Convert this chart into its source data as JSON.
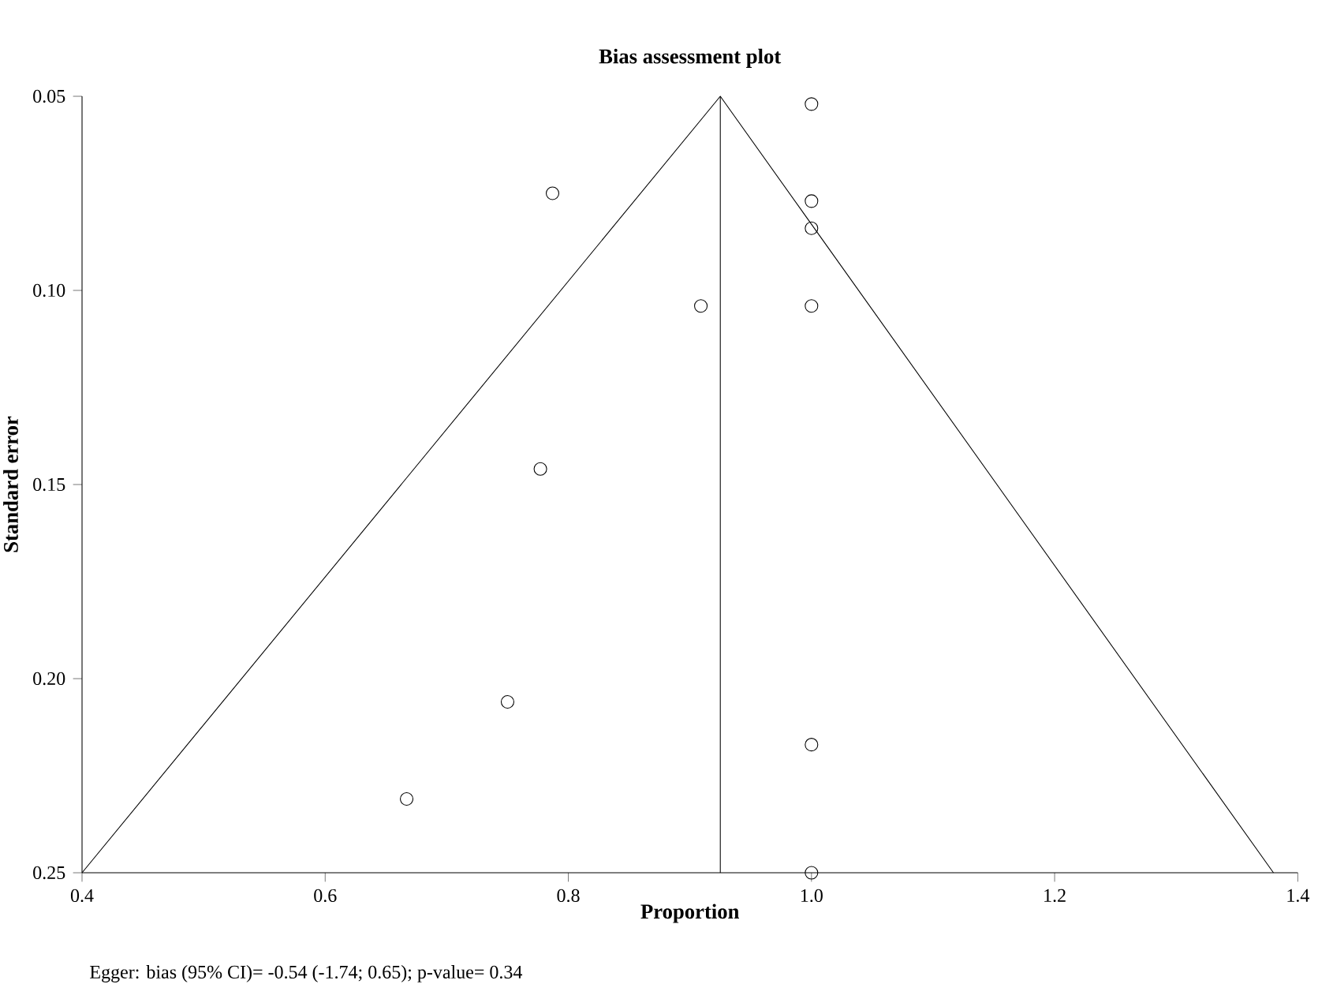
{
  "chart_data": {
    "type": "scatter",
    "title": "Bias assessment plot",
    "xlabel": "Proportion",
    "ylabel": "Standard error",
    "annotations": [
      "Egger: bias (95% CI)= -0.54 (-1.74; 0.65); p-value= 0.34"
    ],
    "xlim": [
      0.4,
      1.4
    ],
    "xticks": [
      0.4,
      0.6,
      0.8,
      {
        "value": 1.0,
        "label": "1.0"
      },
      1.2,
      1.4
    ],
    "ylim": [
      0.25,
      0.05
    ],
    "yticks": [
      0.05,
      {
        "value": 0.1,
        "label": "0.10"
      },
      0.15,
      {
        "value": 0.2,
        "label": "0.20"
      },
      0.25
    ],
    "series": [
      {
        "color": "#000000",
        "marker": "circle",
        "x": [
          1.0,
          0.787,
          1.0,
          1.0,
          0.909,
          1.0,
          0.777,
          0.75,
          1.0,
          0.667,
          1.0
        ],
        "values": [
          0.052,
          0.075,
          0.077,
          0.084,
          0.104,
          0.104,
          0.146,
          0.206,
          0.217,
          0.231,
          0.25
        ]
      },
      {
        "type": "line",
        "color": "#000000",
        "marker": "none",
        "line_style": "solid",
        "x": [
          0.4,
          0.925,
          1.38
        ],
        "values": [
          0.25,
          0.05,
          0.25
        ]
      }
    ],
    "ref_lines": [
      {
        "axis": "x",
        "value": 0.925,
        "color": "#000000",
        "line_style": "solid"
      }
    ]
  }
}
